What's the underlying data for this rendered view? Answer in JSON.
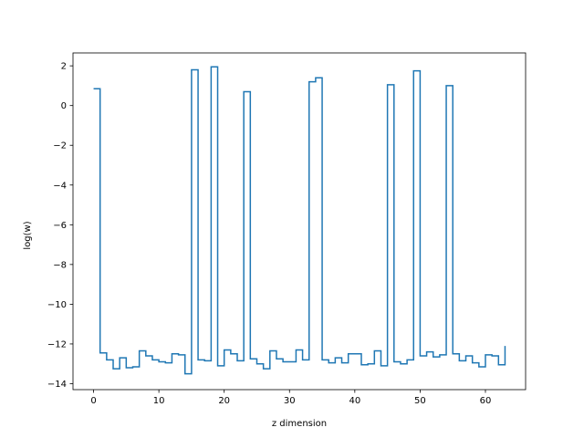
{
  "chart_data": {
    "type": "line",
    "drawstyle": "steps-post",
    "title": "",
    "xlabel": "z dimension",
    "ylabel": "log(w)",
    "xlim": [
      -3.15,
      66.15
    ],
    "ylim": [
      -14.3,
      2.65
    ],
    "xticks": [
      0,
      10,
      20,
      30,
      40,
      50,
      60
    ],
    "yticks": [
      -14,
      -12,
      -10,
      -8,
      -6,
      -4,
      -2,
      0,
      2
    ],
    "grid": false,
    "series": [
      {
        "color": "#1f77b4",
        "x": [
          0,
          1,
          2,
          3,
          4,
          5,
          6,
          7,
          8,
          9,
          10,
          11,
          12,
          13,
          14,
          15,
          16,
          17,
          18,
          19,
          20,
          21,
          22,
          23,
          24,
          25,
          26,
          27,
          28,
          29,
          30,
          31,
          32,
          33,
          34,
          35,
          36,
          37,
          38,
          39,
          40,
          41,
          42,
          43,
          44,
          45,
          46,
          47,
          48,
          49,
          50,
          51,
          52,
          53,
          54,
          55,
          56,
          57,
          58,
          59,
          60,
          61,
          62,
          63
        ],
        "y": [
          0.85,
          -12.45,
          -12.8,
          -13.25,
          -12.7,
          -13.2,
          -13.15,
          -12.35,
          -12.6,
          -12.8,
          -12.9,
          -12.95,
          -12.5,
          -12.55,
          -13.5,
          1.8,
          -12.8,
          -12.85,
          1.95,
          -13.1,
          -12.3,
          -12.5,
          -12.85,
          0.7,
          -12.75,
          -13.0,
          -13.25,
          -12.35,
          -12.75,
          -12.9,
          -12.9,
          -12.3,
          -12.8,
          1.2,
          1.4,
          -12.8,
          -12.95,
          -12.7,
          -12.95,
          -12.5,
          -12.5,
          -13.05,
          -13.0,
          -12.35,
          -13.1,
          1.05,
          -12.9,
          -13.0,
          -12.8,
          1.75,
          -12.6,
          -12.4,
          -12.65,
          -12.55,
          1.0,
          -12.5,
          -12.85,
          -12.6,
          -12.95,
          -13.15,
          -12.55,
          -12.6,
          -13.05,
          -12.1
        ]
      }
    ]
  }
}
